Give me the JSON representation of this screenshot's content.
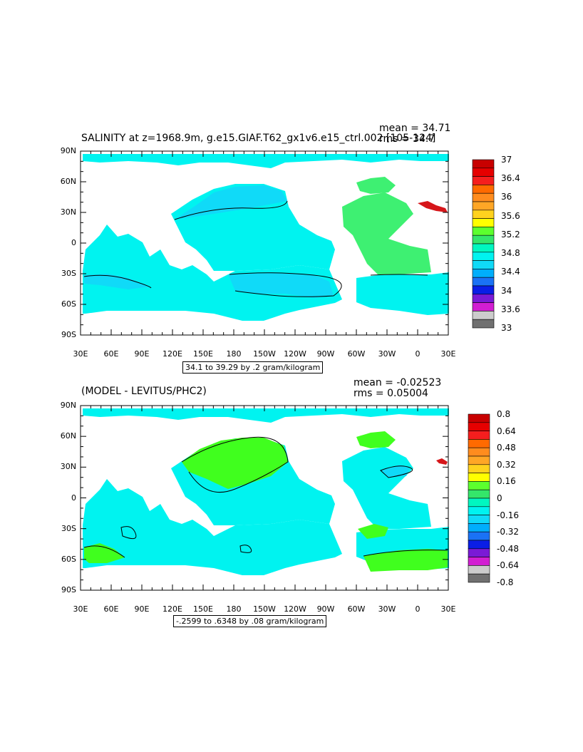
{
  "colors": {
    "cyan": "#00f3f0",
    "light_blue": "#10daf8",
    "blue": "#00aefc",
    "green": "#3ef072",
    "yellow_green": "#40ff1e",
    "red": "#d6161a",
    "ocean_sea_mid": "#1ae2ef",
    "land": "#ffffff",
    "frame": "#000000"
  },
  "panel1": {
    "title": "SALINITY at z=1968.9m, g.e15.GIAF.T62_gx1v6.e15_ctrl.002 [105-124]",
    "mean": "mean = 34.71",
    "rms": "rms = 34.7",
    "contour_info": "34.1 to 39.29 by .2 gram/kilogram",
    "lat_labels": [
      "90N",
      "60N",
      "30N",
      "0",
      "30S",
      "60S",
      "90S"
    ],
    "lon_labels": [
      "30E",
      "60E",
      "90E",
      "120E",
      "150E",
      "180",
      "150W",
      "120W",
      "90W",
      "60W",
      "30W",
      "0",
      "30E"
    ],
    "colorbar": {
      "labels": [
        "37",
        "36.4",
        "36",
        "35.6",
        "35.2",
        "34.8",
        "34.4",
        "34",
        "33.6",
        "33"
      ],
      "colors": [
        "#c80000",
        "#e60000",
        "#f51e1e",
        "#ff6a00",
        "#ff8c1e",
        "#ffa626",
        "#ffd21e",
        "#ffff00",
        "#5cff2e",
        "#34e66a",
        "#00f7c0",
        "#00f3f0",
        "#10daf8",
        "#00aefc",
        "#1a72f5",
        "#0a1ee6",
        "#7a1ad6",
        "#d21ed2",
        "#cccccc",
        "#707070"
      ]
    }
  },
  "panel2": {
    "title": "(MODEL - LEVITUS/PHC2)",
    "mean": "mean = -0.02523",
    "rms": "rms = 0.05004",
    "contour_info": "-.2599 to .6348 by .08 gram/kilogram",
    "lat_labels": [
      "90N",
      "60N",
      "30N",
      "0",
      "30S",
      "60S",
      "90S"
    ],
    "lon_labels": [
      "30E",
      "60E",
      "90E",
      "120E",
      "150E",
      "180",
      "150W",
      "120W",
      "90W",
      "60W",
      "30W",
      "0",
      "30E"
    ],
    "colorbar": {
      "labels": [
        "0.8",
        "0.64",
        "0.48",
        "0.32",
        "0.16",
        "0",
        "-0.16",
        "-0.32",
        "-0.48",
        "-0.64",
        "-0.8"
      ],
      "colors": [
        "#c80000",
        "#e60000",
        "#f51e1e",
        "#ff6a00",
        "#ff8c1e",
        "#ffa626",
        "#ffd21e",
        "#ffff00",
        "#5cff2e",
        "#34e66a",
        "#00f7c0",
        "#00f3f0",
        "#10daf8",
        "#00aefc",
        "#1a72f5",
        "#0a1ee6",
        "#7a1ad6",
        "#d21ed2",
        "#cccccc",
        "#707070"
      ]
    }
  }
}
